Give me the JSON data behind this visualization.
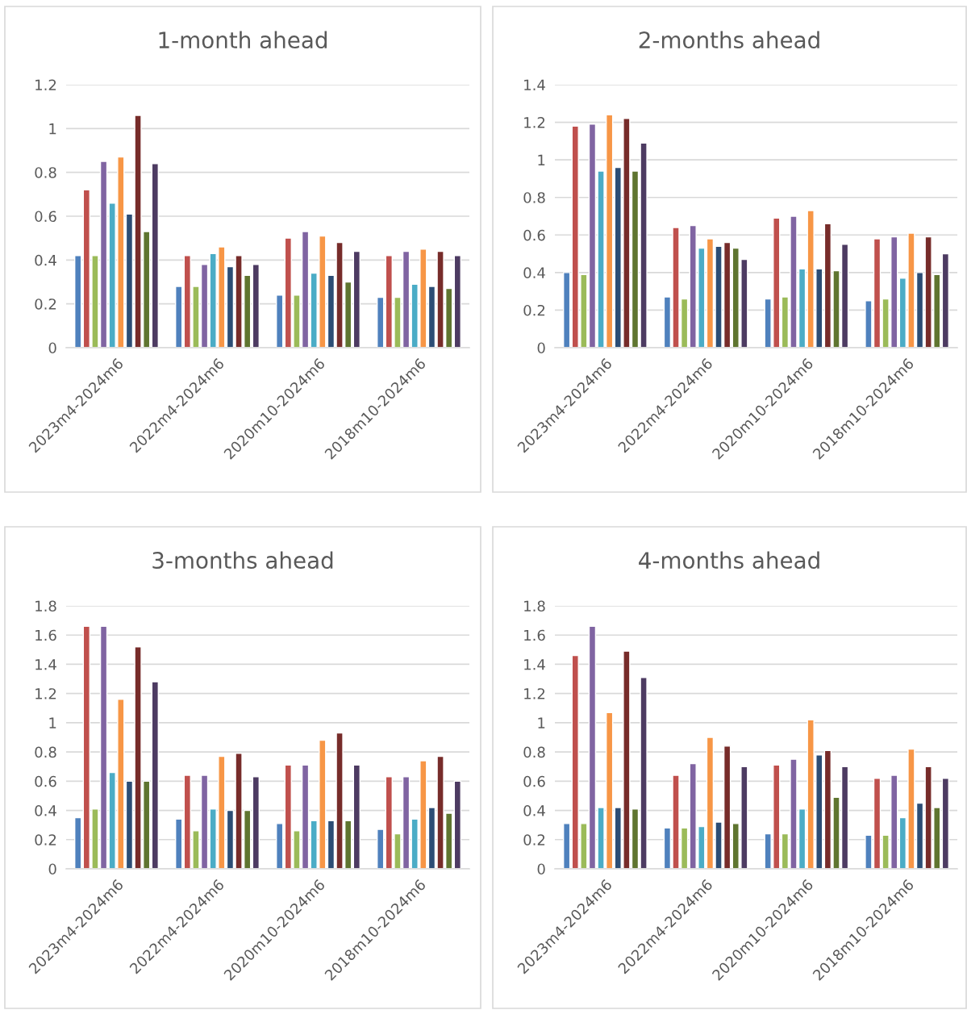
{
  "chart_data": [
    {
      "type": "bar",
      "title": "1-month ahead",
      "categories": [
        "2023m4-2024m6",
        "2022m4-2024m6",
        "2020m10-2024m6",
        "2018m10-2024m6"
      ],
      "ylim": [
        0,
        1.2
      ],
      "yticks": [
        0,
        0.2,
        0.4,
        0.6,
        0.8,
        1,
        1.2
      ],
      "grid": "y",
      "series": [
        {
          "color": "#4f81bd",
          "values": [
            0.42,
            0.28,
            0.24,
            0.23
          ]
        },
        {
          "color": "#c0504d",
          "values": [
            0.72,
            0.42,
            0.5,
            0.42
          ]
        },
        {
          "color": "#9bbb59",
          "values": [
            0.42,
            0.28,
            0.24,
            0.23
          ]
        },
        {
          "color": "#8064a2",
          "values": [
            0.85,
            0.38,
            0.53,
            0.44
          ]
        },
        {
          "color": "#4bacc6",
          "values": [
            0.66,
            0.43,
            0.34,
            0.29
          ]
        },
        {
          "color": "#f79646",
          "values": [
            0.87,
            0.46,
            0.51,
            0.45
          ]
        },
        {
          "color": "#2c4d75",
          "values": [
            0.61,
            0.37,
            0.33,
            0.28
          ]
        },
        {
          "color": "#772c2a",
          "values": [
            1.06,
            0.42,
            0.48,
            0.44
          ]
        },
        {
          "color": "#5f7530",
          "values": [
            0.53,
            0.33,
            0.3,
            0.27
          ]
        },
        {
          "color": "#4d3b62",
          "values": [
            0.84,
            0.38,
            0.44,
            0.42
          ]
        }
      ]
    },
    {
      "type": "bar",
      "title": "2-months ahead",
      "categories": [
        "2023m4-2024m6",
        "2022m4-2024m6",
        "2020m10-2024m6",
        "2018m10-2024m6"
      ],
      "ylim": [
        0,
        1.4
      ],
      "yticks": [
        0,
        0.2,
        0.4,
        0.6,
        0.8,
        1,
        1.2,
        1.4
      ],
      "grid": "y",
      "series": [
        {
          "color": "#4f81bd",
          "values": [
            0.4,
            0.27,
            0.26,
            0.25
          ]
        },
        {
          "color": "#c0504d",
          "values": [
            1.18,
            0.64,
            0.69,
            0.58
          ]
        },
        {
          "color": "#9bbb59",
          "values": [
            0.39,
            0.26,
            0.27,
            0.26
          ]
        },
        {
          "color": "#8064a2",
          "values": [
            1.19,
            0.65,
            0.7,
            0.59
          ]
        },
        {
          "color": "#4bacc6",
          "values": [
            0.94,
            0.53,
            0.42,
            0.37
          ]
        },
        {
          "color": "#f79646",
          "values": [
            1.24,
            0.58,
            0.73,
            0.61
          ]
        },
        {
          "color": "#2c4d75",
          "values": [
            0.96,
            0.54,
            0.42,
            0.4
          ]
        },
        {
          "color": "#772c2a",
          "values": [
            1.22,
            0.56,
            0.66,
            0.59
          ]
        },
        {
          "color": "#5f7530",
          "values": [
            0.94,
            0.53,
            0.41,
            0.39
          ]
        },
        {
          "color": "#4d3b62",
          "values": [
            1.09,
            0.47,
            0.55,
            0.5
          ]
        }
      ]
    },
    {
      "type": "bar",
      "title": "3-months ahead",
      "categories": [
        "2023m4-2024m6",
        "2022m4-2024m6",
        "2020m10-2024m6",
        "2018m10-2024m6"
      ],
      "ylim": [
        0,
        1.8
      ],
      "yticks": [
        0,
        0.2,
        0.4,
        0.6,
        0.8,
        1,
        1.2,
        1.4,
        1.6,
        1.8
      ],
      "grid": "y",
      "series": [
        {
          "color": "#4f81bd",
          "values": [
            0.35,
            0.34,
            0.31,
            0.27
          ]
        },
        {
          "color": "#c0504d",
          "values": [
            1.66,
            0.64,
            0.71,
            0.63
          ]
        },
        {
          "color": "#9bbb59",
          "values": [
            0.41,
            0.26,
            0.26,
            0.24
          ]
        },
        {
          "color": "#8064a2",
          "values": [
            1.66,
            0.64,
            0.71,
            0.63
          ]
        },
        {
          "color": "#4bacc6",
          "values": [
            0.66,
            0.41,
            0.33,
            0.34
          ]
        },
        {
          "color": "#f79646",
          "values": [
            1.16,
            0.77,
            0.88,
            0.74
          ]
        },
        {
          "color": "#2c4d75",
          "values": [
            0.6,
            0.4,
            0.33,
            0.42
          ]
        },
        {
          "color": "#772c2a",
          "values": [
            1.52,
            0.79,
            0.93,
            0.77
          ]
        },
        {
          "color": "#5f7530",
          "values": [
            0.6,
            0.4,
            0.33,
            0.38
          ]
        },
        {
          "color": "#4d3b62",
          "values": [
            1.28,
            0.63,
            0.71,
            0.6
          ]
        }
      ]
    },
    {
      "type": "bar",
      "title": "4-months ahead",
      "categories": [
        "2023m4-2024m6",
        "2022m4-2024m6",
        "2020m10-2024m6",
        "2018m10-2024m6"
      ],
      "ylim": [
        0,
        1.8
      ],
      "yticks": [
        0,
        0.2,
        0.4,
        0.6,
        0.8,
        1,
        1.2,
        1.4,
        1.6,
        1.8
      ],
      "grid": "y",
      "series": [
        {
          "color": "#4f81bd",
          "values": [
            0.31,
            0.28,
            0.24,
            0.23
          ]
        },
        {
          "color": "#c0504d",
          "values": [
            1.46,
            0.64,
            0.71,
            0.62
          ]
        },
        {
          "color": "#9bbb59",
          "values": [
            0.31,
            0.28,
            0.24,
            0.23
          ]
        },
        {
          "color": "#8064a2",
          "values": [
            1.66,
            0.72,
            0.75,
            0.64
          ]
        },
        {
          "color": "#4bacc6",
          "values": [
            0.42,
            0.29,
            0.41,
            0.35
          ]
        },
        {
          "color": "#f79646",
          "values": [
            1.07,
            0.9,
            1.02,
            0.82
          ]
        },
        {
          "color": "#2c4d75",
          "values": [
            0.42,
            0.32,
            0.78,
            0.45
          ]
        },
        {
          "color": "#772c2a",
          "values": [
            1.49,
            0.84,
            0.81,
            0.7
          ]
        },
        {
          "color": "#5f7530",
          "values": [
            0.41,
            0.31,
            0.49,
            0.42
          ]
        },
        {
          "color": "#4d3b62",
          "values": [
            1.31,
            0.7,
            0.7,
            0.62
          ]
        }
      ]
    }
  ]
}
